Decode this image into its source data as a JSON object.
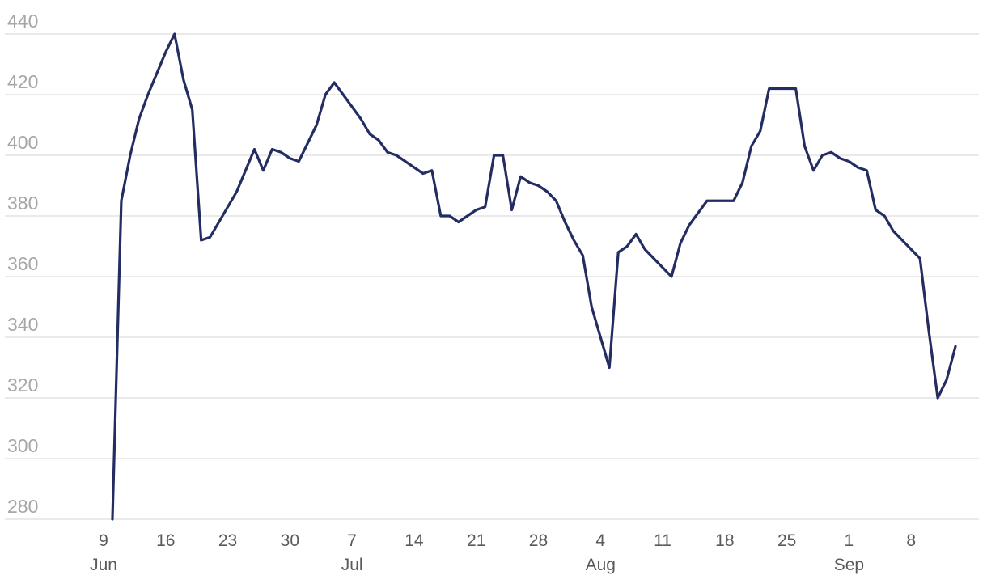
{
  "chart_data": {
    "type": "line",
    "title": "",
    "xlabel": "",
    "ylabel": "",
    "x_start": "2024-06-09",
    "x_end": "2024-09-14",
    "ylim": [
      280,
      440
    ],
    "yticks": [
      "280",
      "300",
      "320",
      "340",
      "360",
      "380",
      "400",
      "420",
      "440"
    ],
    "xticks": [
      {
        "date": "2024-06-09",
        "label": "9",
        "month": "Jun"
      },
      {
        "date": "2024-06-16",
        "label": "16",
        "month": ""
      },
      {
        "date": "2024-06-23",
        "label": "23",
        "month": ""
      },
      {
        "date": "2024-06-30",
        "label": "30",
        "month": ""
      },
      {
        "date": "2024-07-07",
        "label": "7",
        "month": "Jul"
      },
      {
        "date": "2024-07-14",
        "label": "14",
        "month": ""
      },
      {
        "date": "2024-07-21",
        "label": "21",
        "month": ""
      },
      {
        "date": "2024-07-28",
        "label": "28",
        "month": ""
      },
      {
        "date": "2024-08-04",
        "label": "4",
        "month": "Aug"
      },
      {
        "date": "2024-08-11",
        "label": "11",
        "month": ""
      },
      {
        "date": "2024-08-18",
        "label": "18",
        "month": ""
      },
      {
        "date": "2024-08-25",
        "label": "25",
        "month": ""
      },
      {
        "date": "2024-09-01",
        "label": "1",
        "month": "Sep"
      },
      {
        "date": "2024-09-08",
        "label": "8",
        "month": ""
      }
    ],
    "grid": true,
    "legend": "none",
    "colors": {
      "line": "#232d62",
      "grid": "#dedede",
      "ytick": "#a6a6a6",
      "xtick": "#5a5a5a"
    },
    "series": [
      {
        "x": [
          "2024-06-10",
          "2024-06-11",
          "2024-06-12",
          "2024-06-13",
          "2024-06-14",
          "2024-06-15",
          "2024-06-16",
          "2024-06-17",
          "2024-06-18",
          "2024-06-19",
          "2024-06-20",
          "2024-06-21",
          "2024-06-22",
          "2024-06-23",
          "2024-06-24",
          "2024-06-25",
          "2024-06-26",
          "2024-06-27",
          "2024-06-28",
          "2024-06-29",
          "2024-06-30",
          "2024-07-01",
          "2024-07-02",
          "2024-07-03",
          "2024-07-04",
          "2024-07-05",
          "2024-07-06",
          "2024-07-07",
          "2024-07-08",
          "2024-07-09",
          "2024-07-10",
          "2024-07-11",
          "2024-07-12",
          "2024-07-13",
          "2024-07-14",
          "2024-07-15",
          "2024-07-16",
          "2024-07-17",
          "2024-07-18",
          "2024-07-19",
          "2024-07-20",
          "2024-07-21",
          "2024-07-22",
          "2024-07-23",
          "2024-07-24",
          "2024-07-25",
          "2024-07-26",
          "2024-07-27",
          "2024-07-28",
          "2024-07-29",
          "2024-07-30",
          "2024-07-31",
          "2024-08-01",
          "2024-08-02",
          "2024-08-03",
          "2024-08-04",
          "2024-08-05",
          "2024-08-06",
          "2024-08-07",
          "2024-08-08",
          "2024-08-09",
          "2024-08-10",
          "2024-08-11",
          "2024-08-12",
          "2024-08-13",
          "2024-08-14",
          "2024-08-15",
          "2024-08-16",
          "2024-08-17",
          "2024-08-18",
          "2024-08-19",
          "2024-08-20",
          "2024-08-21",
          "2024-08-22",
          "2024-08-23",
          "2024-08-24",
          "2024-08-25",
          "2024-08-26",
          "2024-08-27",
          "2024-08-28",
          "2024-08-29",
          "2024-08-30",
          "2024-08-31",
          "2024-09-01",
          "2024-09-02",
          "2024-09-03",
          "2024-09-04",
          "2024-09-05",
          "2024-09-06",
          "2024-09-07",
          "2024-09-08",
          "2024-09-09",
          "2024-09-10",
          "2024-09-11",
          "2024-09-12",
          "2024-09-13"
        ],
        "values": [
          280,
          385,
          400,
          412,
          420,
          427,
          434,
          440,
          425,
          415,
          372,
          373,
          378,
          383,
          388,
          395,
          402,
          395,
          402,
          401,
          399,
          398,
          404,
          410,
          420,
          424,
          420,
          416,
          412,
          407,
          405,
          401,
          400,
          398,
          396,
          394,
          395,
          380,
          380,
          378,
          380,
          382,
          383,
          400,
          400,
          382,
          393,
          391,
          390,
          388,
          385,
          378,
          372,
          367,
          350,
          340,
          330,
          368,
          370,
          374,
          369,
          366,
          363,
          360,
          371,
          377,
          381,
          385,
          385,
          385,
          385,
          391,
          403,
          408,
          422,
          422,
          422,
          422,
          403,
          395,
          400,
          401,
          399,
          398,
          396,
          395,
          382,
          380,
          375,
          372,
          369,
          366,
          342,
          320,
          326,
          337
        ]
      }
    ]
  }
}
